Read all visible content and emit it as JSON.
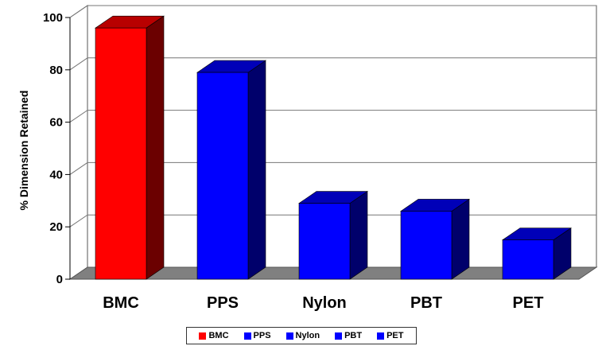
{
  "chart_data": {
    "type": "bar",
    "categories": [
      "BMC",
      "PPS",
      "Nylon",
      "PBT",
      "PET"
    ],
    "values": [
      96,
      79,
      29,
      26,
      15
    ],
    "colors": [
      "#ff0000",
      "#0000ff",
      "#0000ff",
      "#0000ff",
      "#0000ff"
    ],
    "ylabel": "% Dimension Retained",
    "xlabel": "",
    "ylim": [
      0,
      100
    ],
    "yticks": [
      0,
      20,
      40,
      60,
      80,
      100
    ],
    "grid": true,
    "three_d": true,
    "legend": {
      "placement": "bottom",
      "entries": [
        {
          "label": "BMC",
          "color": "#ff0000"
        },
        {
          "label": "PPS",
          "color": "#0000ff"
        },
        {
          "label": "Nylon",
          "color": "#0000ff"
        },
        {
          "label": "PBT",
          "color": "#0000ff"
        },
        {
          "label": "PET",
          "color": "#0000ff"
        }
      ]
    }
  }
}
